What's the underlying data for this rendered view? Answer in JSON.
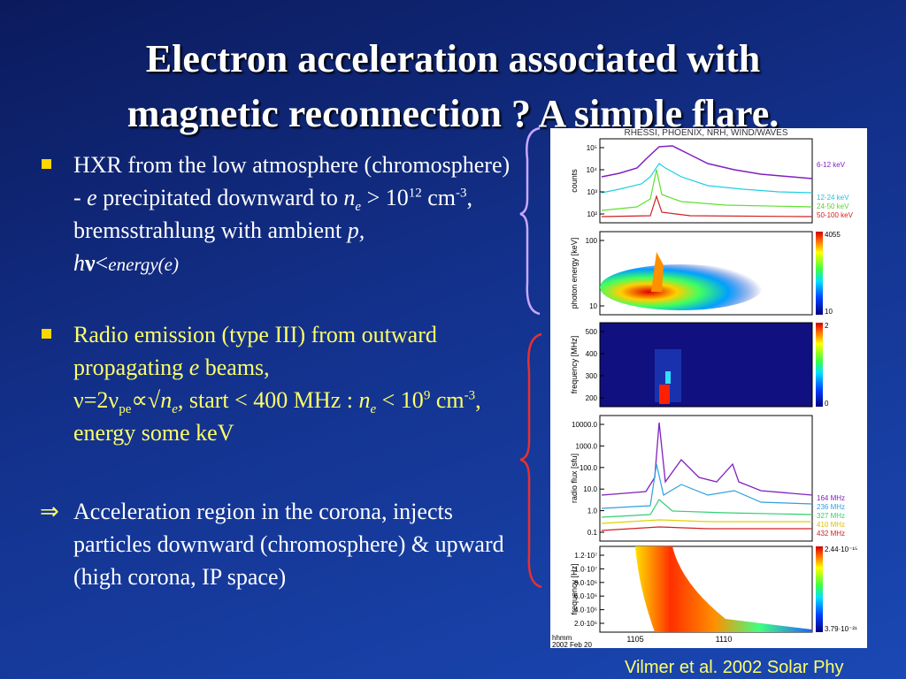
{
  "title": {
    "line1": "Electron acceleration associated with",
    "line2": "magnetic reconnection ? A simple flare."
  },
  "bullets": [
    [
      "HXR from the low atmosphere (chromosphere) - ",
      "e",
      " precipitated downward to ",
      "n",
      "e",
      " > 10",
      "12",
      " cm",
      "-3",
      ", bremsstrahlung with ambient ",
      "p,",
      " h",
      "ν",
      "<",
      "energy(e)"
    ],
    [
      "Radio emission (type III) from outward propagating ",
      "e",
      " beams, ",
      "ν=2ν",
      "pe",
      "∝√",
      "n",
      "e",
      ", start < 400 MHz : ",
      "n",
      "e",
      " < 10",
      "9",
      " cm",
      "-3",
      ", energy some keV"
    ],
    [
      "⇒",
      " Acceleration region in the corona, injects particles downward (chromosphere) & upward (high corona, IP space)"
    ]
  ],
  "credit": "Vilmer et al.  2002 Solar Phy",
  "figure": {
    "header": "RHESSI, PHOENIX, NRH, WIND/WAVES",
    "panels": [
      {
        "ylabel": "counts",
        "ticks": [
          "10⁵",
          "10⁴",
          "10³",
          "10²"
        ],
        "legend": [
          "6-12 keV",
          "12-24 keV",
          "24-50 keV",
          "50-100 keV"
        ]
      },
      {
        "ylabel": "photon energy [keV]",
        "ticks": [
          "100",
          "10"
        ],
        "colorbar": [
          "4055",
          "10"
        ]
      },
      {
        "ylabel": "frequency [MHz]",
        "ticks": [
          "500",
          "400",
          "300",
          "200"
        ],
        "colorbar": [
          "2",
          "0"
        ]
      },
      {
        "ylabel": "radio flux [sfu]",
        "ticks": [
          "10000.0",
          "1000.0",
          "100.0",
          "10.0",
          "1.0",
          "0.1"
        ],
        "legend": [
          "164 MHz",
          "236 MHz",
          "327 MHz",
          "410 MHz",
          "432 MHz"
        ]
      },
      {
        "ylabel": "frequency [Hz]",
        "ticks": [
          "1.2·10⁷",
          "1.0·10⁷",
          "8.0·10⁶",
          "6.0·10⁶",
          "4.0·10⁶",
          "2.0·10⁶"
        ],
        "colorbar": [
          "2.44·10⁻¹⁵",
          "3.79·10⁻²¹"
        ]
      }
    ],
    "xaxis": {
      "unit": "hhmm",
      "date": "2002 Feb 20",
      "ticks": [
        "1105",
        "1110"
      ]
    }
  }
}
